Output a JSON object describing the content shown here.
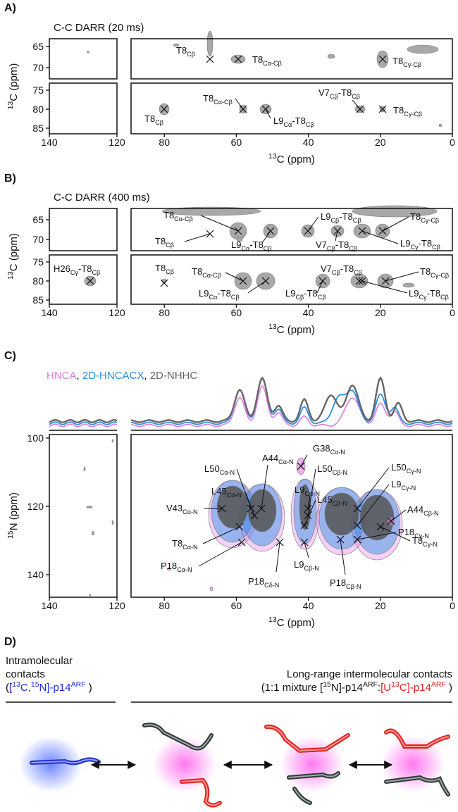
{
  "panel_a": {
    "letter": "A)",
    "title": "C-C DARR (20 ms)",
    "y_label": {
      "sup": "13",
      "text": "C (ppm)"
    },
    "x_label": {
      "sup": "13",
      "text": "C (ppm)"
    },
    "upper_yticks": [
      65,
      70
    ],
    "lower_yticks": [
      75,
      80,
      85
    ],
    "left_xticks": [
      140,
      120
    ],
    "right_xticks": [
      80,
      60,
      40,
      20,
      0
    ],
    "peaks": [
      [
        "T8",
        "Cβ"
      ],
      [
        "T8",
        "Cα-Cβ"
      ],
      [
        "T8",
        "Cγ-Cβ"
      ],
      [
        "T8",
        "Cβ"
      ],
      [
        "T8",
        "Cα-Cβ"
      ],
      [
        "L9",
        "Cα",
        "-T8",
        "Cβ"
      ],
      [
        "V7",
        "Cβ",
        "-T8",
        "Cβ"
      ],
      [
        "T8",
        "Cγ-Cβ"
      ]
    ]
  },
  "panel_b": {
    "letter": "B)",
    "title": "C-C DARR (400 ms)",
    "y_label": {
      "sup": "13",
      "text": "C (ppm)"
    },
    "x_label": {
      "sup": "13",
      "text": "C (ppm)"
    },
    "upper_yticks": [
      65,
      70
    ],
    "lower_yticks": [
      75,
      80,
      85
    ],
    "left_xticks": [
      140,
      120
    ],
    "right_xticks": [
      80,
      60,
      40,
      20,
      0
    ],
    "peaks": [
      [
        "T8",
        "Cα-Cβ"
      ],
      [
        "T8",
        "Cβ"
      ],
      [
        "L9",
        "Cα",
        "-T8",
        "Cβ"
      ],
      [
        "L9",
        "Cβ",
        "-T8",
        "Cβ"
      ],
      [
        "V7",
        "Cβ",
        "-T8",
        "Cβ"
      ],
      [
        "T8",
        "Cγ-Cβ"
      ],
      [
        "L9",
        "Cγ",
        "-T8",
        "Cβ"
      ],
      [
        "H26",
        "Cγ",
        "-T8",
        "Cβ"
      ],
      [
        "T8",
        "Cβ"
      ],
      [
        "T8",
        "Cα-Cβ"
      ],
      [
        "L9",
        "Cα",
        "-T8",
        "Cβ"
      ],
      [
        "L9",
        "Cβ",
        "-T8",
        "Cβ"
      ],
      [
        "V7",
        "Cβ",
        "-T8",
        "Cβ"
      ],
      [
        "T8",
        "Cγ-Cβ"
      ],
      [
        "L9",
        "Cγ",
        "-T8",
        "Cβ"
      ]
    ]
  },
  "panel_c": {
    "letter": "C)",
    "legend": [
      {
        "text": "HNCA",
        "color": "#e27ae2"
      },
      {
        "text": ", "
      },
      {
        "text": "2D-HNCACX",
        "color": "#2b8fe6"
      },
      {
        "text": ", "
      },
      {
        "text": "2D-NHHC",
        "color": "#666666"
      }
    ],
    "y_label": {
      "sup": "15",
      "text": "N (ppm)"
    },
    "x_label": {
      "sup": "13",
      "text": "C (ppm)"
    },
    "yticks": [
      100,
      120,
      140
    ],
    "left_xticks": [
      140,
      120
    ],
    "right_xticks": [
      80,
      60,
      40,
      20,
      0
    ],
    "peaks": [
      [
        "L50",
        "Cα-N"
      ],
      [
        "A44",
        "Cα-N"
      ],
      [
        "G38",
        "Cα-N"
      ],
      [
        "L45",
        "Cα-N"
      ],
      [
        "L9",
        "Cα-N"
      ],
      [
        "L50",
        "Cβ-N"
      ],
      [
        "L45",
        "Cβ-N"
      ],
      [
        "L50",
        "Cγ-N"
      ],
      [
        "L9",
        "Cγ-N"
      ],
      [
        "A44",
        "Cβ-N"
      ],
      [
        "V43",
        "Cα-N"
      ],
      [
        "T8",
        "Cα-N"
      ],
      [
        "T8",
        "Cγ-N"
      ],
      [
        "P18",
        "Cγ-N"
      ],
      [
        "P18",
        "Cα-N"
      ],
      [
        "P18",
        "Cδ-N"
      ],
      [
        "L9",
        "Cβ-N"
      ],
      [
        "P18",
        "Cβ-N"
      ]
    ]
  },
  "panel_d": {
    "letter": "D)",
    "left_lines": [
      [
        {
          "text": "Intramolecular"
        }
      ],
      [
        {
          "text": "contacts"
        }
      ],
      [
        {
          "text": "("
        },
        {
          "text": "[",
          "color": "#1f2fd8"
        },
        {
          "text": "13",
          "sup": true,
          "color": "#1f2fd8"
        },
        {
          "text": "C,",
          "color": "#1f2fd8"
        },
        {
          "text": "15",
          "sup": true,
          "color": "#1f2fd8"
        },
        {
          "text": "N]-p14",
          "color": "#1f2fd8"
        },
        {
          "text": "ARF",
          "sup": true,
          "color": "#1f2fd8"
        },
        {
          "text": " )"
        }
      ]
    ],
    "right_lines": [
      [
        {
          "text": "Long-range intermolecular contacts"
        }
      ],
      [
        {
          "text": "(1:1 mixture ["
        },
        {
          "text": "15",
          "sup": true
        },
        {
          "text": "N]-p14"
        },
        {
          "text": "ARF",
          "sup": true
        },
        {
          "text": ":"
        },
        {
          "text": "[U",
          "color": "#e8201c"
        },
        {
          "text": "13",
          "sup": true,
          "color": "#e8201c"
        },
        {
          "text": "C]-p14",
          "color": "#e8201c"
        },
        {
          "text": "ARF",
          "sup": true,
          "color": "#e8201c"
        },
        {
          "text": " )"
        }
      ]
    ]
  }
}
